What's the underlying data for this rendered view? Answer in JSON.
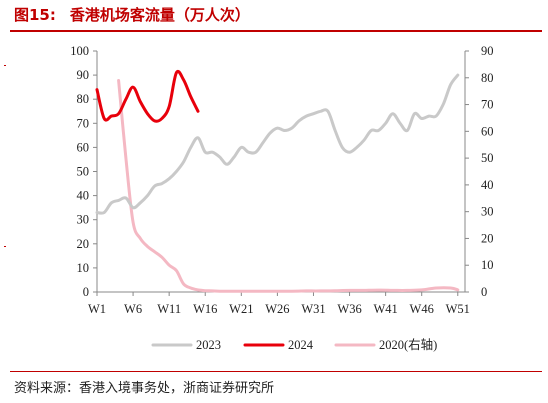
{
  "header": {
    "figure_no": "图15:",
    "title": "香港机场客流量（万人次）"
  },
  "footer": {
    "source": "资料来源：香港入境事务处，浙商证券研究所"
  },
  "colors": {
    "title_red": "#c00000",
    "series_2023": "#c9c9c9",
    "series_2024": "#e8000b",
    "series_2020": "#f4b8c3"
  },
  "chart_data": {
    "type": "line",
    "x_tick_labels": [
      "W1",
      "W6",
      "W11",
      "W16",
      "W21",
      "W26",
      "W31",
      "W36",
      "W41",
      "W46",
      "W51"
    ],
    "x_tick_weeks": [
      1,
      6,
      11,
      16,
      21,
      26,
      31,
      36,
      41,
      46,
      51
    ],
    "x_range": [
      1,
      52
    ],
    "y_left": {
      "ticks": [
        0,
        10,
        20,
        30,
        40,
        50,
        60,
        70,
        80,
        90,
        100
      ],
      "range": [
        0,
        100
      ]
    },
    "y_right": {
      "ticks": [
        0,
        10,
        20,
        30,
        40,
        50,
        60,
        70,
        80,
        90
      ],
      "range": [
        0,
        90
      ]
    },
    "grid": false,
    "legend_position": "bottom",
    "series": [
      {
        "name": "2023",
        "axis": "left",
        "x": [
          1,
          2,
          3,
          4,
          5,
          6,
          7,
          8,
          9,
          10,
          11,
          12,
          13,
          14,
          15,
          16,
          17,
          18,
          19,
          20,
          21,
          22,
          23,
          24,
          25,
          26,
          27,
          28,
          29,
          30,
          31,
          32,
          33,
          34,
          35,
          36,
          37,
          38,
          39,
          40,
          41,
          42,
          43,
          44,
          45,
          46,
          47,
          48,
          49,
          50,
          51
        ],
        "y": [
          33,
          33,
          37,
          38,
          39,
          35,
          37,
          40,
          44,
          45,
          47,
          50,
          54,
          60,
          64,
          58,
          58,
          56,
          53,
          56,
          60,
          58,
          58,
          62,
          66,
          68,
          67,
          68,
          71,
          73,
          74,
          75,
          75,
          67,
          60,
          58,
          60,
          63,
          67,
          67,
          70,
          74,
          70,
          67,
          74,
          72,
          73,
          73,
          78,
          86,
          90
        ]
      },
      {
        "name": "2024",
        "axis": "left",
        "x": [
          1,
          2,
          3,
          4,
          5,
          6,
          7,
          8,
          9,
          10,
          11,
          12,
          13,
          14,
          15
        ],
        "y": [
          84,
          72,
          73,
          74,
          80,
          85,
          79,
          74,
          71,
          72,
          77,
          91,
          88,
          81,
          75
        ]
      },
      {
        "name": "2020(右轴)",
        "axis": "right",
        "x": [
          4,
          5,
          6,
          7,
          8,
          9,
          10,
          11,
          12,
          13,
          14,
          15,
          16,
          17,
          18,
          20,
          22,
          24,
          26,
          28,
          30,
          32,
          34,
          36,
          38,
          40,
          42,
          44,
          46,
          48,
          50,
          51
        ],
        "y": [
          79,
          50,
          26,
          20,
          17,
          15,
          13,
          10,
          8,
          3,
          1.5,
          0.8,
          0.5,
          0.4,
          0.3,
          0.3,
          0.3,
          0.3,
          0.3,
          0.3,
          0.4,
          0.4,
          0.5,
          0.6,
          0.6,
          0.7,
          0.6,
          0.6,
          0.8,
          1.5,
          1.5,
          0.8
        ]
      }
    ]
  }
}
